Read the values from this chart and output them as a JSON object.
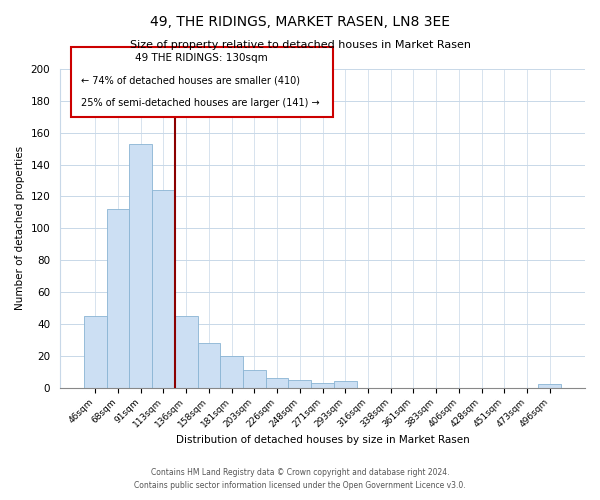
{
  "title": "49, THE RIDINGS, MARKET RASEN, LN8 3EE",
  "subtitle": "Size of property relative to detached houses in Market Rasen",
  "xlabel": "Distribution of detached houses by size in Market Rasen",
  "ylabel": "Number of detached properties",
  "bar_labels": [
    "46sqm",
    "68sqm",
    "91sqm",
    "113sqm",
    "136sqm",
    "158sqm",
    "181sqm",
    "203sqm",
    "226sqm",
    "248sqm",
    "271sqm",
    "293sqm",
    "316sqm",
    "338sqm",
    "361sqm",
    "383sqm",
    "406sqm",
    "428sqm",
    "451sqm",
    "473sqm",
    "496sqm"
  ],
  "bar_values": [
    45,
    112,
    153,
    124,
    45,
    28,
    20,
    11,
    6,
    5,
    3,
    4,
    0,
    0,
    0,
    0,
    0,
    0,
    0,
    0,
    2
  ],
  "bar_color": "#ccdff3",
  "bar_edge_color": "#8ab4d4",
  "vline_color": "#8b0000",
  "ylim": [
    0,
    200
  ],
  "yticks": [
    0,
    20,
    40,
    60,
    80,
    100,
    120,
    140,
    160,
    180,
    200
  ],
  "annotation_title": "49 THE RIDINGS: 130sqm",
  "annotation_line1": "← 74% of detached houses are smaller (410)",
  "annotation_line2": "25% of semi-detached houses are larger (141) →",
  "footer_line1": "Contains HM Land Registry data © Crown copyright and database right 2024.",
  "footer_line2": "Contains public sector information licensed under the Open Government Licence v3.0.",
  "grid_color": "#c8d8e8",
  "background_color": "#ffffff",
  "vline_bar_index": 4
}
